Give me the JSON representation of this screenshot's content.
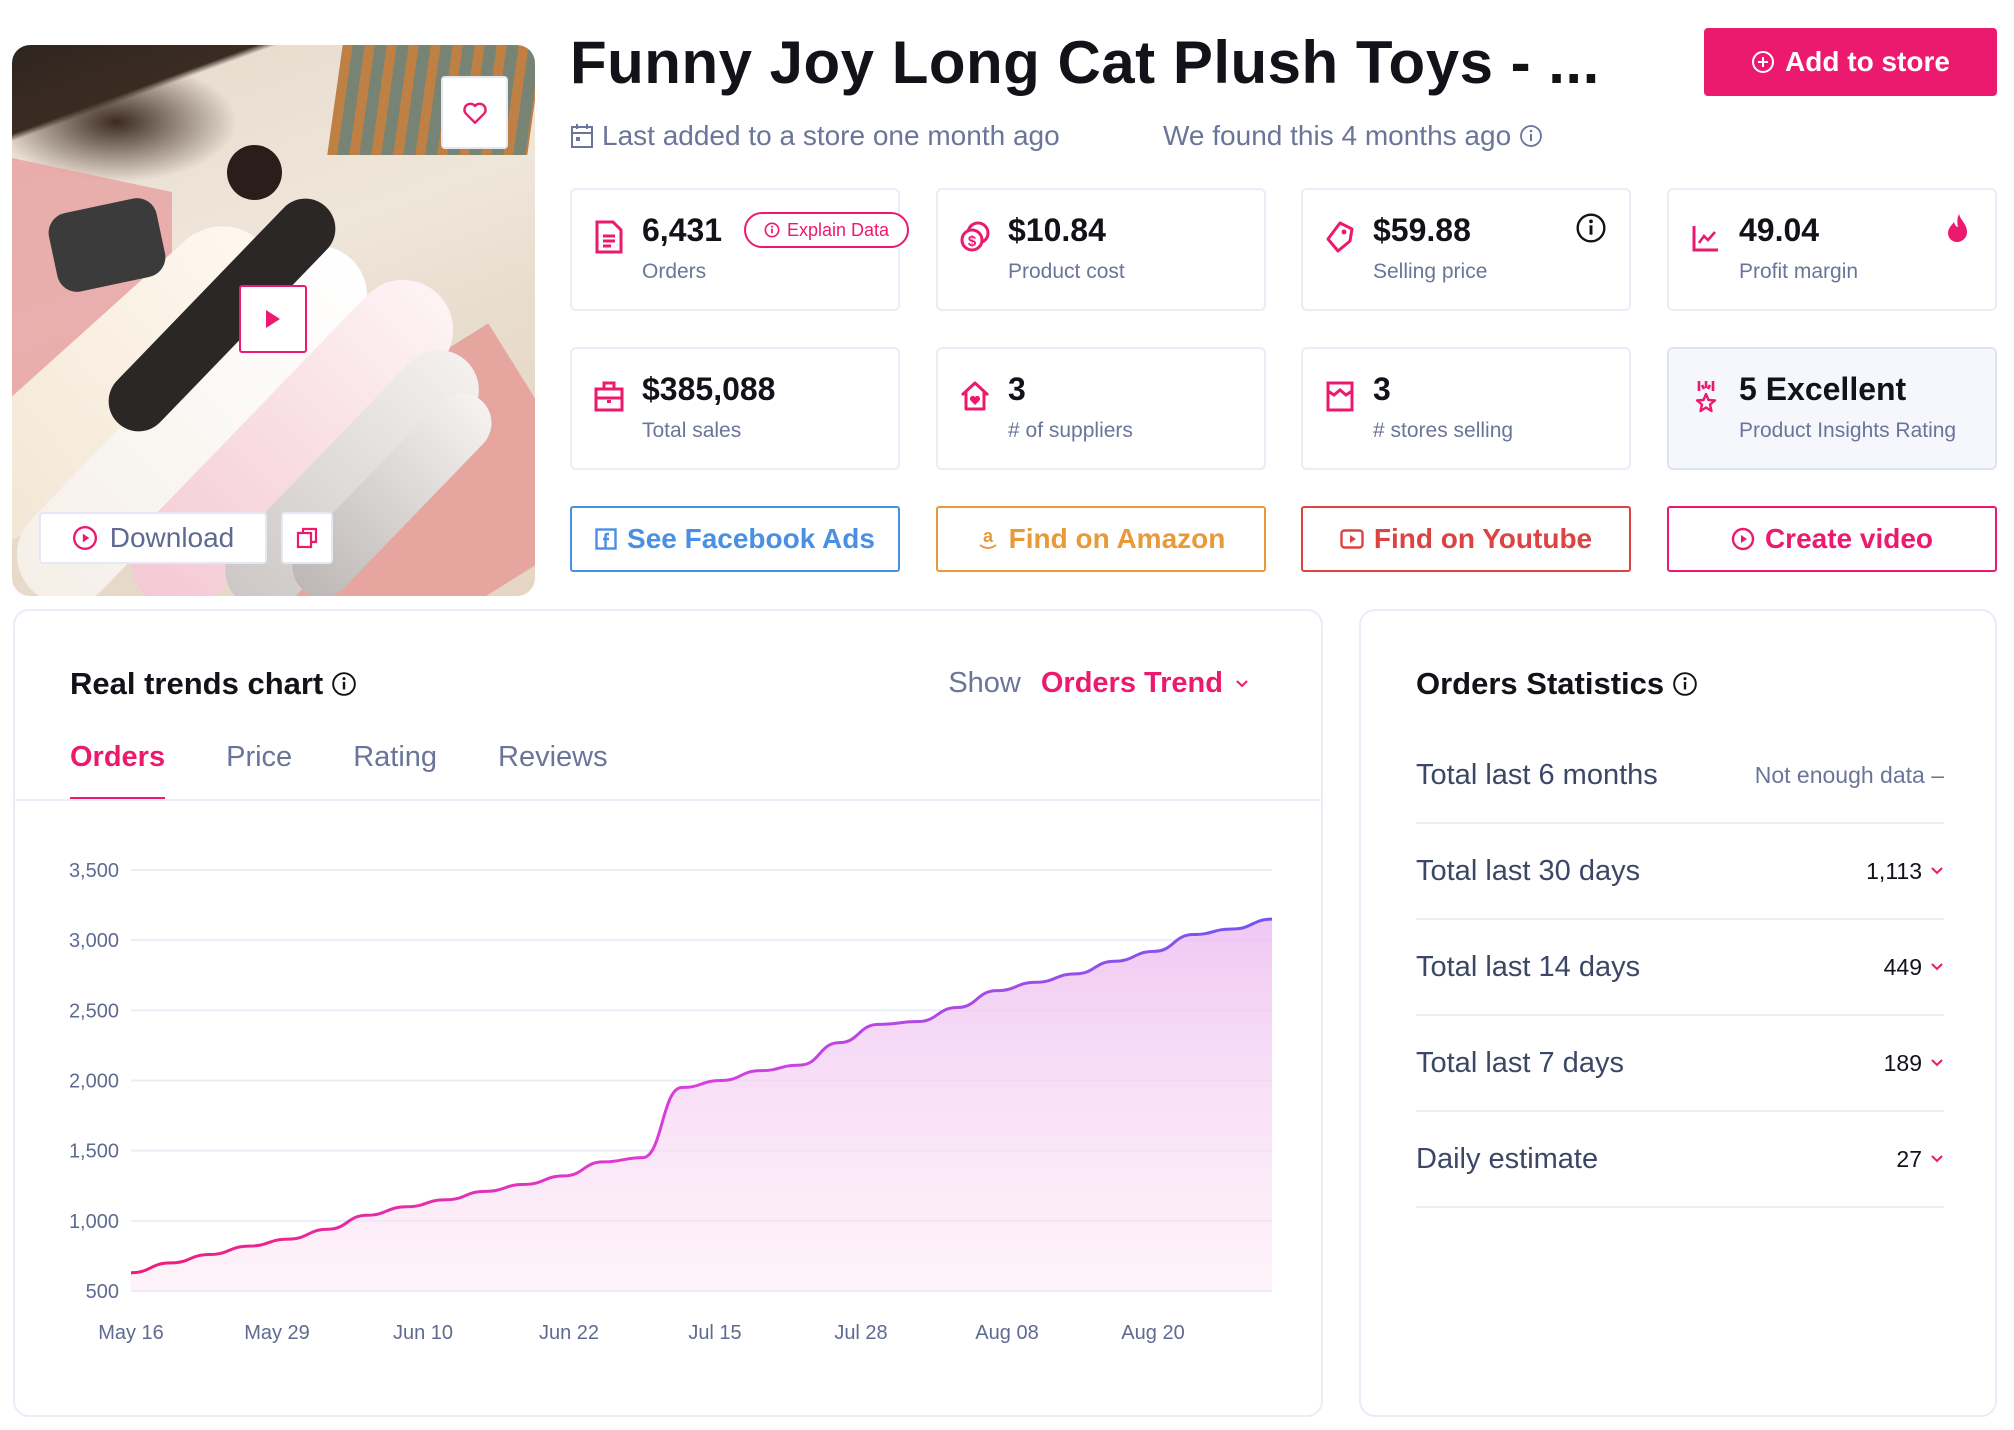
{
  "product": {
    "title": "Funny Joy Long Cat Plush Toys - ...",
    "image_alt": "Girl sleeping on long cat plush toys",
    "download_label": "Download"
  },
  "header": {
    "add_to_store_label": "Add to store",
    "last_added": "Last added to a store one month ago",
    "found": "We found this 4 months ago"
  },
  "stats": [
    {
      "value": "6,431",
      "label": "Orders",
      "icon": "document-icon",
      "badge": "Explain Data"
    },
    {
      "value": "$10.84",
      "label": "Product cost",
      "icon": "coins-icon"
    },
    {
      "value": "$59.88",
      "label": "Selling price",
      "icon": "price-tag-icon",
      "corner": "info-icon"
    },
    {
      "value": "49.04",
      "label": "Profit margin",
      "icon": "trend-chart-icon",
      "corner": "flame-icon"
    },
    {
      "value": "$385,088",
      "label": "Total sales",
      "icon": "briefcase-icon"
    },
    {
      "value": "3",
      "label": "# of suppliers",
      "icon": "house-heart-icon"
    },
    {
      "value": "3",
      "label": "# stores selling",
      "icon": "storefront-icon"
    },
    {
      "value": "5 Excellent",
      "label": "Product Insights Rating",
      "icon": "award-star-icon"
    }
  ],
  "actions": [
    {
      "label": "See Facebook Ads",
      "icon": "facebook-icon",
      "color": "#4a90e2"
    },
    {
      "label": "Find on Amazon",
      "icon": "amazon-icon",
      "color": "#e8993a"
    },
    {
      "label": "Find on Youtube",
      "icon": "youtube-icon",
      "color": "#dc4444"
    },
    {
      "label": "Create video",
      "icon": "play-circle-icon",
      "color": "#ec1a6f"
    }
  ],
  "trends": {
    "title": "Real trends chart",
    "show_label": "Show",
    "show_value": "Orders Trend",
    "tabs": [
      {
        "label": "Orders",
        "active": true
      },
      {
        "label": "Price",
        "active": false
      },
      {
        "label": "Rating",
        "active": false
      },
      {
        "label": "Reviews",
        "active": false
      }
    ]
  },
  "chart_data": {
    "type": "area",
    "title": "Real trends chart",
    "series": [
      {
        "name": "Orders",
        "values": [
          630,
          700,
          760,
          820,
          870,
          940,
          1040,
          1100,
          1150,
          1210,
          1260,
          1320,
          1420,
          1450,
          1950,
          2000,
          2070,
          2110,
          2270,
          2400,
          2420,
          2520,
          2640,
          2700,
          2760,
          2850,
          2920,
          3040,
          3080,
          3150
        ]
      }
    ],
    "x": [
      "May 16",
      "",
      "",
      "",
      "",
      "May 29",
      "",
      "",
      "",
      "Jun 10",
      "",
      "",
      "",
      "Jun 22",
      "",
      "",
      "",
      "Jul 15",
      "",
      "",
      "Jul 28",
      "",
      "",
      "",
      "Aug 08",
      "",
      "",
      "Aug 20",
      "",
      ""
    ],
    "x_ticks": [
      "May 16",
      "May 29",
      "Jun 10",
      "Jun 22",
      "Jul 15",
      "Jul 28",
      "Aug 08",
      "Aug 20"
    ],
    "y_ticks": [
      "500",
      "1,000",
      "1,500",
      "2,000",
      "2,500",
      "3,000",
      "3,500"
    ],
    "ylim": [
      500,
      3500
    ],
    "xlabel": "",
    "ylabel": "",
    "grid": true,
    "legend": "none",
    "colors": {
      "line_start": "#ee1d7a",
      "line_mid": "#d93ee0",
      "line_end": "#6f57f0",
      "fill": "#f3c6f0"
    }
  },
  "orders_statistics": {
    "title": "Orders Statistics",
    "rows": [
      {
        "label": "Total last 6 months",
        "value": "Not enough data –",
        "muted": true
      },
      {
        "label": "Total last 30 days",
        "value": "1,113"
      },
      {
        "label": "Total last 14 days",
        "value": "449"
      },
      {
        "label": "Total last 7 days",
        "value": "189"
      },
      {
        "label": "Daily estimate",
        "value": "27"
      }
    ]
  },
  "colors": {
    "accent": "#ec1a6f",
    "text_primary": "#111319",
    "text_muted": "#6b7599",
    "border": "#e8edf7"
  }
}
